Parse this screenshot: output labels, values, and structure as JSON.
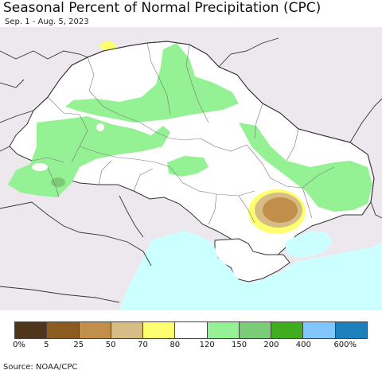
{
  "title": "Seasonal Percent of Normal Precipitation (CPC)",
  "subtitle": "Sep. 1 - Aug. 5, 2023",
  "source": "Source: NOAA/CPC",
  "colors": {
    "outside": "#ede8ee",
    "land": "#ffffff",
    "sea": "#ccffff",
    "border": "#333333"
  },
  "legend": {
    "colors": [
      "#4d3619",
      "#8c5a23",
      "#c28f4a",
      "#d6bd85",
      "#ffff70",
      "#ffffff",
      "#94f294",
      "#7ccb78",
      "#3fad1f",
      "#82c6ff",
      "#1c80bd"
    ],
    "labels": [
      "0%",
      "5",
      "25",
      "50",
      "70",
      "80",
      "120",
      "150",
      "200",
      "400",
      "600%"
    ]
  }
}
